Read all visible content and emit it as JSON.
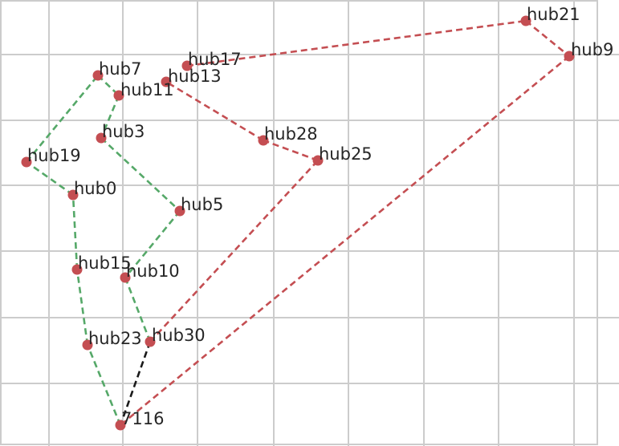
{
  "diagram": {
    "type": "network-route-map",
    "grid": true,
    "colors": {
      "background": "#ffffff",
      "grid": "#cccccc",
      "node": "#c44e52",
      "text": "#262626",
      "route_green": "#55a868",
      "route_red": "#c44e52",
      "route_black": "#1a1a1a"
    },
    "nodes": [
      {
        "id": "hub21",
        "label": "hub21"
      },
      {
        "id": "hub9",
        "label": "hub9"
      },
      {
        "id": "hub17",
        "label": "hub17"
      },
      {
        "id": "hub13",
        "label": "hub13"
      },
      {
        "id": "hub7",
        "label": "hub7"
      },
      {
        "id": "hub11",
        "label": "hub11"
      },
      {
        "id": "hub3",
        "label": "hub3"
      },
      {
        "id": "hub28",
        "label": "hub28"
      },
      {
        "id": "hub25",
        "label": "hub25"
      },
      {
        "id": "hub19",
        "label": "hub19"
      },
      {
        "id": "hub0",
        "label": "hub0"
      },
      {
        "id": "hub5",
        "label": "hub5"
      },
      {
        "id": "hub15",
        "label": "hub15"
      },
      {
        "id": "hub10",
        "label": "hub10"
      },
      {
        "id": "hub30",
        "label": "hub30"
      },
      {
        "id": "hub23",
        "label": "hub23"
      },
      {
        "id": "7116",
        "label": "7116"
      }
    ],
    "routes": [
      {
        "color": "green",
        "path": [
          "7116",
          "hub23",
          "hub15",
          "hub0",
          "hub19",
          "hub7",
          "hub11",
          "hub3",
          "hub5",
          "hub10",
          "hub30"
        ]
      },
      {
        "color": "red",
        "path": [
          "hub30",
          "hub25",
          "hub28",
          "hub13"
        ]
      },
      {
        "color": "red",
        "path": [
          "hub17",
          "hub21",
          "hub9",
          "7116"
        ]
      },
      {
        "color": "black",
        "path": [
          "hub30",
          "7116"
        ]
      }
    ]
  }
}
